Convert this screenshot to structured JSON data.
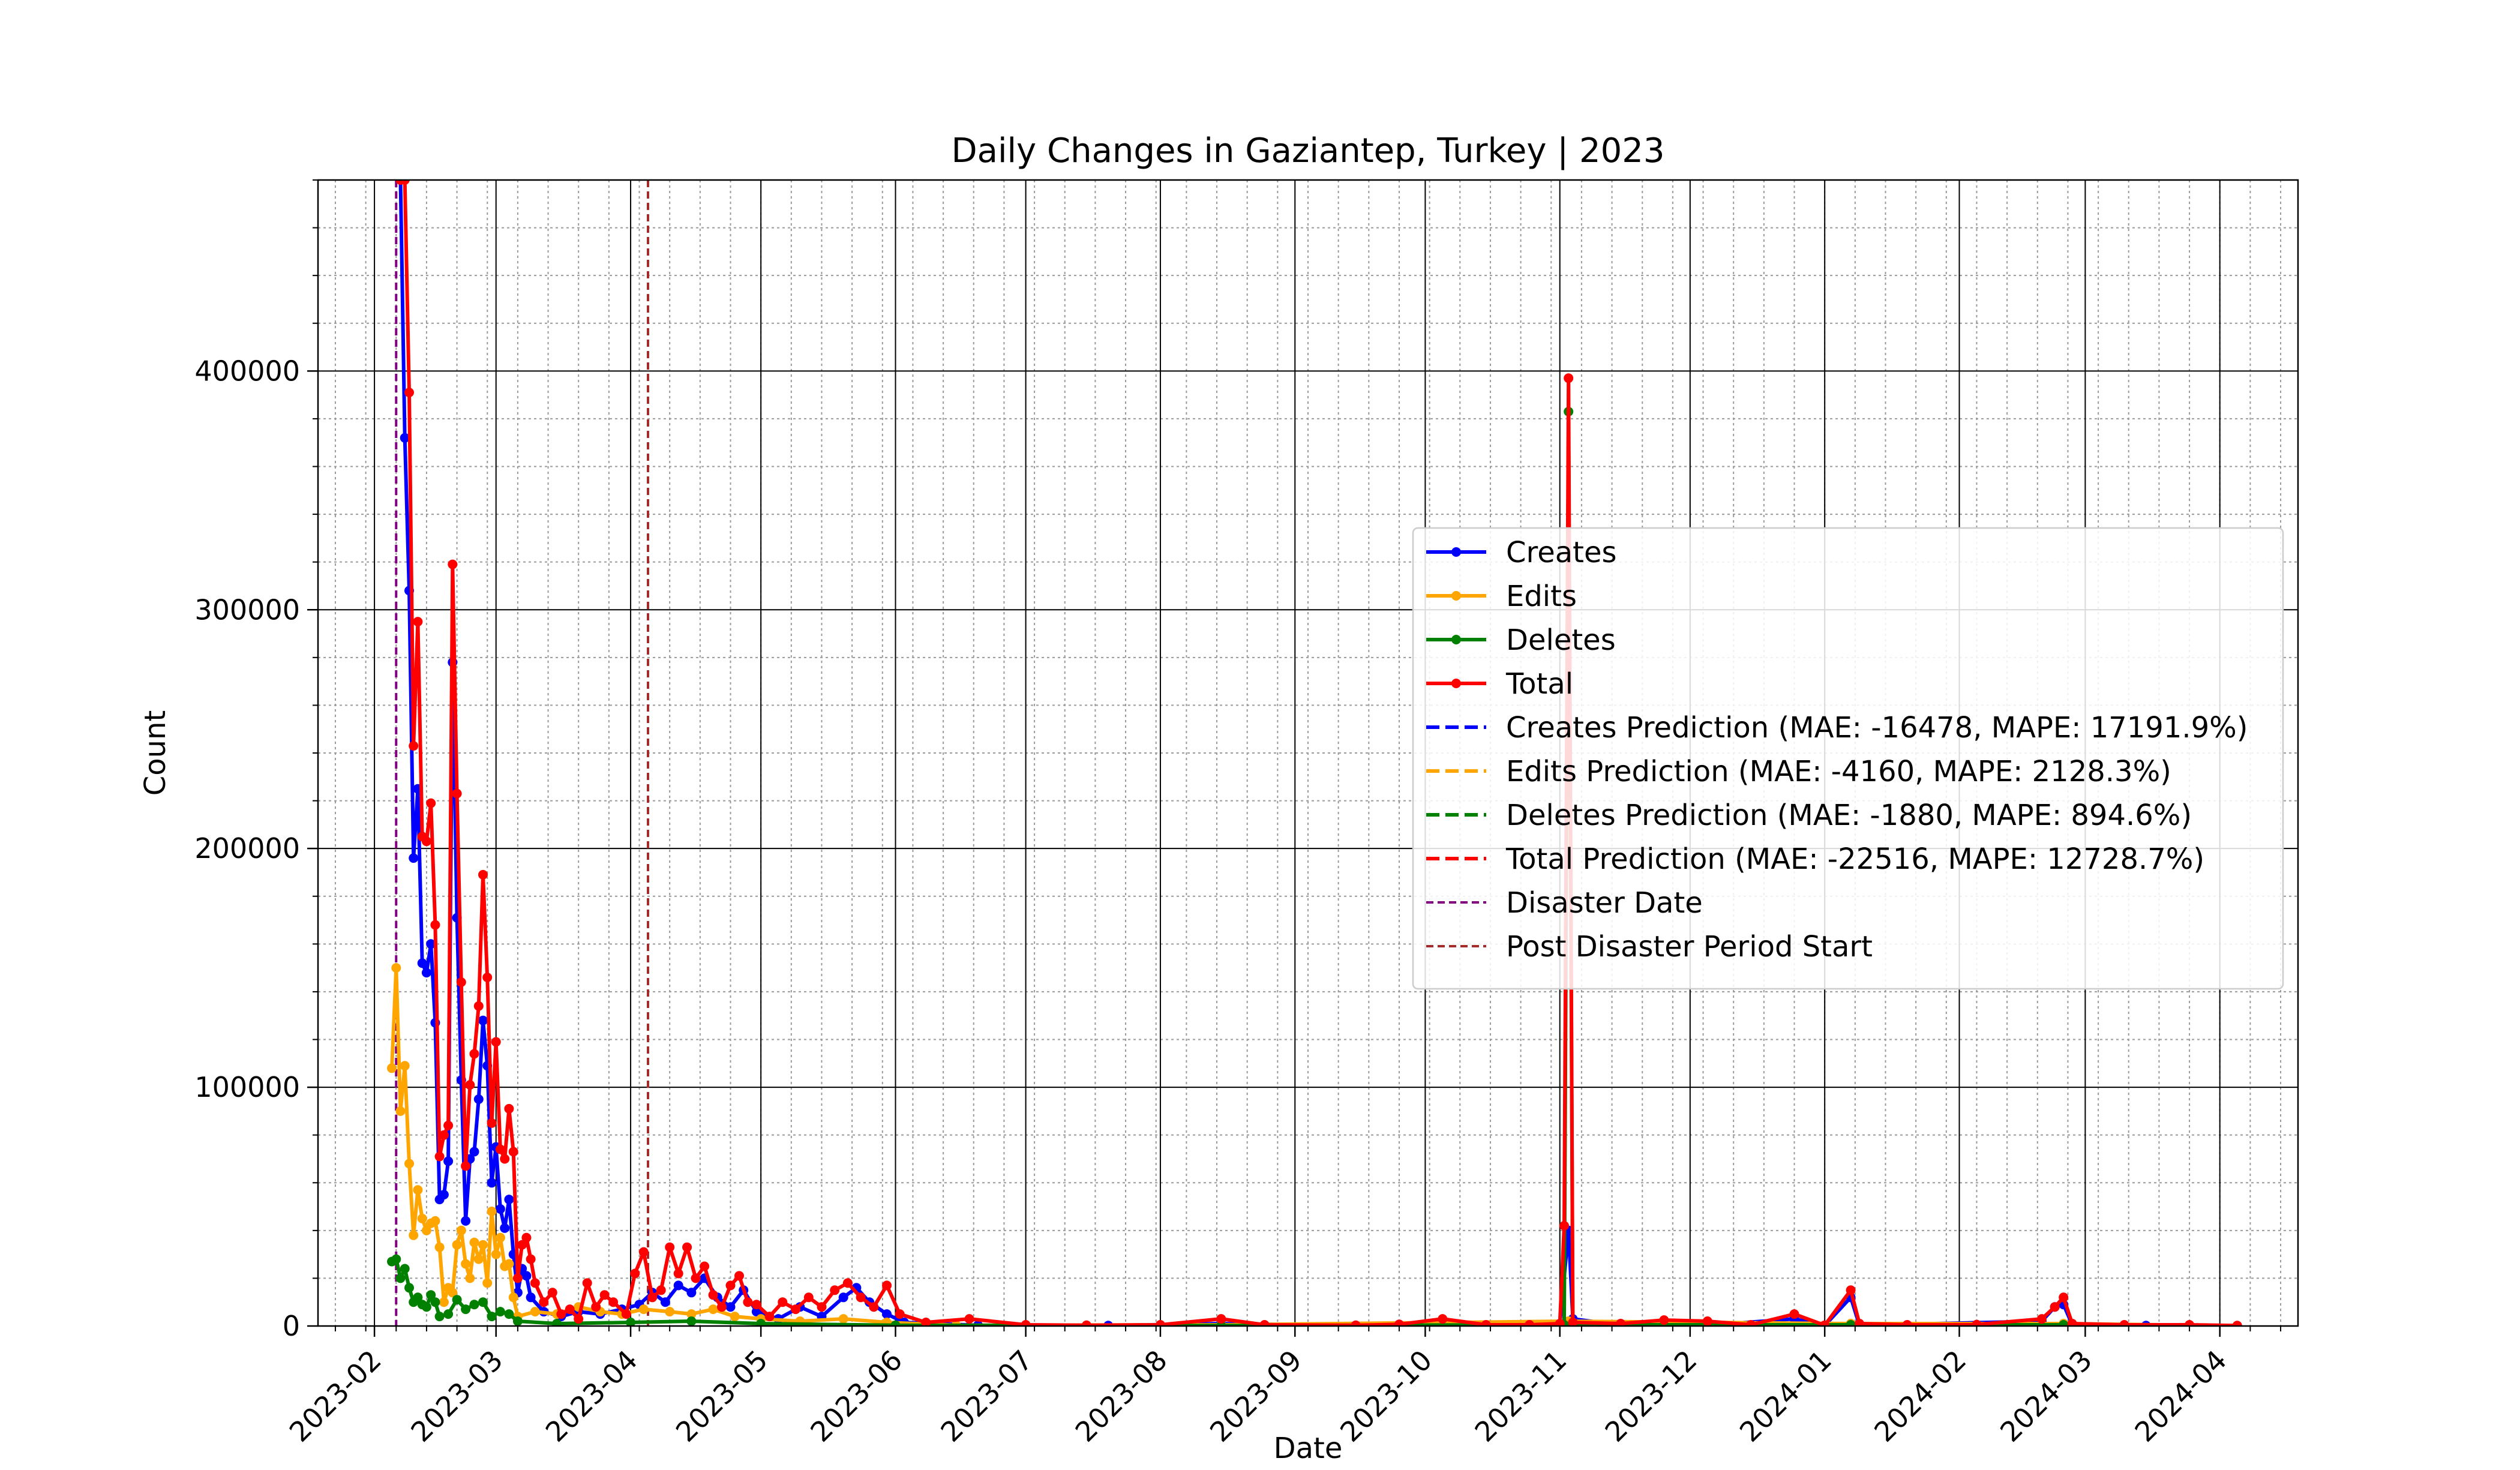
{
  "chart_data": {
    "type": "line",
    "title": "Daily Changes in Gaziantep, Turkey | 2023",
    "xlabel": "Date",
    "ylabel": "Count",
    "x_range": [
      "2023-01-19",
      "2024-04-19"
    ],
    "ylim": [
      0,
      480000
    ],
    "x_ticks": [
      "2023-02",
      "2023-03",
      "2023-04",
      "2023-05",
      "2023-06",
      "2023-07",
      "2023-08",
      "2023-09",
      "2023-10",
      "2023-11",
      "2023-12",
      "2024-01",
      "2024-02",
      "2024-03",
      "2024-04"
    ],
    "y_ticks": [
      0,
      100000,
      200000,
      300000,
      400000
    ],
    "y_tick_labels": [
      "0",
      "100000",
      "200000",
      "300000",
      "400000"
    ],
    "grid": true,
    "legend_position": "center-right",
    "series": [
      {
        "name": "Creates",
        "color": "#0000ff",
        "style": "solid-marker",
        "points": [
          [
            "2023-02-07",
            480000
          ],
          [
            "2023-02-08",
            372000
          ],
          [
            "2023-02-09",
            308000
          ],
          [
            "2023-02-10",
            196000
          ],
          [
            "2023-02-11",
            225000
          ],
          [
            "2023-02-12",
            152000
          ],
          [
            "2023-02-13",
            148000
          ],
          [
            "2023-02-14",
            160000
          ],
          [
            "2023-02-15",
            127000
          ],
          [
            "2023-02-16",
            53000
          ],
          [
            "2023-02-17",
            55000
          ],
          [
            "2023-02-18",
            69000
          ],
          [
            "2023-02-19",
            278000
          ],
          [
            "2023-02-20",
            171000
          ],
          [
            "2023-02-21",
            103000
          ],
          [
            "2023-02-22",
            44000
          ],
          [
            "2023-02-23",
            70000
          ],
          [
            "2023-02-24",
            73000
          ],
          [
            "2023-02-25",
            95000
          ],
          [
            "2023-02-26",
            128000
          ],
          [
            "2023-02-27",
            109000
          ],
          [
            "2023-02-28",
            60000
          ],
          [
            "2023-03-01",
            75000
          ],
          [
            "2023-03-02",
            49000
          ],
          [
            "2023-03-03",
            41000
          ],
          [
            "2023-03-04",
            53000
          ],
          [
            "2023-03-05",
            30000
          ],
          [
            "2023-03-06",
            14000
          ],
          [
            "2023-03-07",
            24000
          ],
          [
            "2023-03-08",
            21000
          ],
          [
            "2023-03-09",
            12000
          ],
          [
            "2023-03-12",
            6000
          ],
          [
            "2023-03-16",
            4000
          ],
          [
            "2023-03-20",
            6000
          ],
          [
            "2023-03-25",
            5000
          ],
          [
            "2023-03-30",
            7000
          ],
          [
            "2023-04-03",
            9000
          ],
          [
            "2023-04-06",
            14000
          ],
          [
            "2023-04-09",
            10000
          ],
          [
            "2023-04-12",
            17000
          ],
          [
            "2023-04-15",
            14000
          ],
          [
            "2023-04-18",
            20000
          ],
          [
            "2023-04-21",
            12000
          ],
          [
            "2023-04-24",
            8000
          ],
          [
            "2023-04-27",
            15000
          ],
          [
            "2023-04-30",
            6000
          ],
          [
            "2023-05-05",
            3000
          ],
          [
            "2023-05-10",
            8000
          ],
          [
            "2023-05-15",
            4000
          ],
          [
            "2023-05-20",
            12000
          ],
          [
            "2023-05-23",
            16000
          ],
          [
            "2023-05-26",
            10000
          ],
          [
            "2023-05-30",
            5000
          ],
          [
            "2023-06-03",
            1500
          ],
          [
            "2023-06-20",
            300
          ],
          [
            "2023-07-20",
            200
          ],
          [
            "2023-08-15",
            1000
          ],
          [
            "2023-09-15",
            200
          ],
          [
            "2023-10-05",
            1000
          ],
          [
            "2023-11-01",
            800
          ],
          [
            "2023-11-03",
            40000
          ],
          [
            "2023-11-04",
            3000
          ],
          [
            "2023-11-15",
            400
          ],
          [
            "2023-12-05",
            300
          ],
          [
            "2023-12-25",
            3000
          ],
          [
            "2024-01-01",
            200
          ],
          [
            "2024-01-07",
            12000
          ],
          [
            "2024-01-09",
            300
          ],
          [
            "2024-02-20",
            2000
          ],
          [
            "2024-02-23",
            8000
          ],
          [
            "2024-02-25",
            9000
          ],
          [
            "2024-02-27",
            500
          ],
          [
            "2024-03-15",
            200
          ],
          [
            "2024-04-05",
            100
          ]
        ]
      },
      {
        "name": "Edits",
        "color": "#ffa500",
        "style": "solid-marker",
        "points": [
          [
            "2023-02-05",
            108000
          ],
          [
            "2023-02-06",
            150000
          ],
          [
            "2023-02-07",
            90000
          ],
          [
            "2023-02-08",
            109000
          ],
          [
            "2023-02-09",
            68000
          ],
          [
            "2023-02-10",
            38000
          ],
          [
            "2023-02-11",
            57000
          ],
          [
            "2023-02-12",
            45000
          ],
          [
            "2023-02-13",
            40000
          ],
          [
            "2023-02-14",
            43000
          ],
          [
            "2023-02-15",
            44000
          ],
          [
            "2023-02-16",
            33000
          ],
          [
            "2023-02-17",
            10000
          ],
          [
            "2023-02-18",
            16000
          ],
          [
            "2023-02-19",
            14000
          ],
          [
            "2023-02-20",
            34000
          ],
          [
            "2023-02-21",
            40000
          ],
          [
            "2023-02-22",
            26000
          ],
          [
            "2023-02-23",
            20000
          ],
          [
            "2023-02-24",
            35000
          ],
          [
            "2023-02-25",
            28000
          ],
          [
            "2023-02-26",
            34000
          ],
          [
            "2023-02-27",
            18000
          ],
          [
            "2023-02-28",
            48000
          ],
          [
            "2023-03-01",
            30000
          ],
          [
            "2023-03-02",
            37000
          ],
          [
            "2023-03-03",
            25000
          ],
          [
            "2023-03-04",
            26000
          ],
          [
            "2023-03-05",
            12000
          ],
          [
            "2023-03-06",
            4000
          ],
          [
            "2023-03-10",
            6000
          ],
          [
            "2023-03-15",
            5000
          ],
          [
            "2023-03-20",
            8000
          ],
          [
            "2023-03-25",
            6000
          ],
          [
            "2023-03-30",
            5000
          ],
          [
            "2023-04-04",
            7000
          ],
          [
            "2023-04-10",
            6000
          ],
          [
            "2023-04-15",
            5000
          ],
          [
            "2023-04-20",
            7000
          ],
          [
            "2023-04-25",
            4000
          ],
          [
            "2023-05-01",
            3000
          ],
          [
            "2023-05-10",
            2000
          ],
          [
            "2023-05-20",
            3000
          ],
          [
            "2023-05-30",
            1500
          ],
          [
            "2023-06-15",
            300
          ],
          [
            "2023-08-15",
            500
          ],
          [
            "2023-11-03",
            2000
          ],
          [
            "2024-01-07",
            1000
          ],
          [
            "2024-02-25",
            1000
          ],
          [
            "2024-04-05",
            100
          ]
        ]
      },
      {
        "name": "Deletes",
        "color": "#008000",
        "style": "solid-marker",
        "points": [
          [
            "2023-02-05",
            27000
          ],
          [
            "2023-02-06",
            28000
          ],
          [
            "2023-02-07",
            20000
          ],
          [
            "2023-02-08",
            24000
          ],
          [
            "2023-02-09",
            16000
          ],
          [
            "2023-02-10",
            10000
          ],
          [
            "2023-02-11",
            12000
          ],
          [
            "2023-02-12",
            9000
          ],
          [
            "2023-02-13",
            8000
          ],
          [
            "2023-02-14",
            13000
          ],
          [
            "2023-02-15",
            10000
          ],
          [
            "2023-02-16",
            4000
          ],
          [
            "2023-02-18",
            5000
          ],
          [
            "2023-02-20",
            11000
          ],
          [
            "2023-02-22",
            7000
          ],
          [
            "2023-02-24",
            9000
          ],
          [
            "2023-02-26",
            10000
          ],
          [
            "2023-02-28",
            4000
          ],
          [
            "2023-03-02",
            6000
          ],
          [
            "2023-03-04",
            5000
          ],
          [
            "2023-03-06",
            2000
          ],
          [
            "2023-03-15",
            1000
          ],
          [
            "2023-04-01",
            1500
          ],
          [
            "2023-04-15",
            2000
          ],
          [
            "2023-05-01",
            1000
          ],
          [
            "2023-06-01",
            300
          ],
          [
            "2023-08-15",
            200
          ],
          [
            "2023-11-02",
            500
          ],
          [
            "2023-11-03",
            383000
          ],
          [
            "2023-11-04",
            500
          ],
          [
            "2024-01-07",
            500
          ],
          [
            "2024-02-25",
            500
          ],
          [
            "2024-04-05",
            50
          ]
        ]
      },
      {
        "name": "Total",
        "color": "#ff0000",
        "style": "solid-marker",
        "points": [
          [
            "2023-02-07",
            480000
          ],
          [
            "2023-02-08",
            480000
          ],
          [
            "2023-02-09",
            391000
          ],
          [
            "2023-02-10",
            243000
          ],
          [
            "2023-02-11",
            295000
          ],
          [
            "2023-02-12",
            205000
          ],
          [
            "2023-02-13",
            203000
          ],
          [
            "2023-02-14",
            219000
          ],
          [
            "2023-02-15",
            168000
          ],
          [
            "2023-02-16",
            71000
          ],
          [
            "2023-02-17",
            80000
          ],
          [
            "2023-02-18",
            84000
          ],
          [
            "2023-02-19",
            319000
          ],
          [
            "2023-02-20",
            223000
          ],
          [
            "2023-02-21",
            144000
          ],
          [
            "2023-02-22",
            67000
          ],
          [
            "2023-02-23",
            101000
          ],
          [
            "2023-02-24",
            114000
          ],
          [
            "2023-02-25",
            134000
          ],
          [
            "2023-02-26",
            189000
          ],
          [
            "2023-02-27",
            146000
          ],
          [
            "2023-02-28",
            85000
          ],
          [
            "2023-03-01",
            119000
          ],
          [
            "2023-03-02",
            74000
          ],
          [
            "2023-03-03",
            70000
          ],
          [
            "2023-03-04",
            91000
          ],
          [
            "2023-03-05",
            73000
          ],
          [
            "2023-03-06",
            20000
          ],
          [
            "2023-03-07",
            34000
          ],
          [
            "2023-03-08",
            37000
          ],
          [
            "2023-03-09",
            28000
          ],
          [
            "2023-03-10",
            18000
          ],
          [
            "2023-03-12",
            10000
          ],
          [
            "2023-03-14",
            14000
          ],
          [
            "2023-03-16",
            5000
          ],
          [
            "2023-03-18",
            7000
          ],
          [
            "2023-03-20",
            3000
          ],
          [
            "2023-03-22",
            18000
          ],
          [
            "2023-03-24",
            8000
          ],
          [
            "2023-03-26",
            13000
          ],
          [
            "2023-03-28",
            10000
          ],
          [
            "2023-03-31",
            5000
          ],
          [
            "2023-04-02",
            22000
          ],
          [
            "2023-04-04",
            31000
          ],
          [
            "2023-04-06",
            12000
          ],
          [
            "2023-04-08",
            15000
          ],
          [
            "2023-04-10",
            33000
          ],
          [
            "2023-04-12",
            22000
          ],
          [
            "2023-04-14",
            33000
          ],
          [
            "2023-04-16",
            20000
          ],
          [
            "2023-04-18",
            25000
          ],
          [
            "2023-04-20",
            13000
          ],
          [
            "2023-04-22",
            8000
          ],
          [
            "2023-04-24",
            17000
          ],
          [
            "2023-04-26",
            21000
          ],
          [
            "2023-04-28",
            10000
          ],
          [
            "2023-04-30",
            9000
          ],
          [
            "2023-05-03",
            4000
          ],
          [
            "2023-05-06",
            10000
          ],
          [
            "2023-05-09",
            7000
          ],
          [
            "2023-05-12",
            12000
          ],
          [
            "2023-05-15",
            8000
          ],
          [
            "2023-05-18",
            15000
          ],
          [
            "2023-05-21",
            18000
          ],
          [
            "2023-05-24",
            12000
          ],
          [
            "2023-05-27",
            8000
          ],
          [
            "2023-05-30",
            17000
          ],
          [
            "2023-06-02",
            5000
          ],
          [
            "2023-06-08",
            1500
          ],
          [
            "2023-06-18",
            3000
          ],
          [
            "2023-07-01",
            500
          ],
          [
            "2023-07-15",
            300
          ],
          [
            "2023-08-01",
            500
          ],
          [
            "2023-08-15",
            3000
          ],
          [
            "2023-08-25",
            500
          ],
          [
            "2023-09-15",
            300
          ],
          [
            "2023-09-25",
            700
          ],
          [
            "2023-10-05",
            3000
          ],
          [
            "2023-10-15",
            500
          ],
          [
            "2023-10-25",
            500
          ],
          [
            "2023-11-01",
            1000
          ],
          [
            "2023-11-02",
            42000
          ],
          [
            "2023-11-03",
            397000
          ],
          [
            "2023-11-04",
            1500
          ],
          [
            "2023-11-15",
            1000
          ],
          [
            "2023-11-25",
            2500
          ],
          [
            "2023-12-05",
            2000
          ],
          [
            "2023-12-15",
            500
          ],
          [
            "2023-12-25",
            5000
          ],
          [
            "2024-01-01",
            300
          ],
          [
            "2024-01-07",
            15000
          ],
          [
            "2024-01-09",
            1000
          ],
          [
            "2024-01-20",
            500
          ],
          [
            "2024-02-05",
            600
          ],
          [
            "2024-02-20",
            3000
          ],
          [
            "2024-02-23",
            8000
          ],
          [
            "2024-02-25",
            12000
          ],
          [
            "2024-02-27",
            1000
          ],
          [
            "2024-03-10",
            500
          ],
          [
            "2024-03-25",
            500
          ],
          [
            "2024-04-05",
            200
          ]
        ]
      },
      {
        "name": "Creates Prediction (MAE: -16478, MAPE: 17191.9%)",
        "color": "#0000ff",
        "style": "dashed",
        "points": []
      },
      {
        "name": "Edits Prediction (MAE: -4160, MAPE: 2128.3%)",
        "color": "#ffa500",
        "style": "dashed",
        "points": []
      },
      {
        "name": "Deletes Prediction (MAE: -1880, MAPE: 894.6%)",
        "color": "#008000",
        "style": "dashed",
        "points": []
      },
      {
        "name": "Total Prediction (MAE: -22516, MAPE: 12728.7%)",
        "color": "#ff0000",
        "style": "dashed",
        "points": []
      }
    ],
    "vlines": [
      {
        "name": "Disaster Date",
        "date": "2023-02-06",
        "color": "#800080",
        "style": "dashed"
      },
      {
        "name": "Post Disaster Period Start",
        "date": "2023-04-05",
        "color": "#a52a2a",
        "style": "dashed"
      }
    ]
  }
}
